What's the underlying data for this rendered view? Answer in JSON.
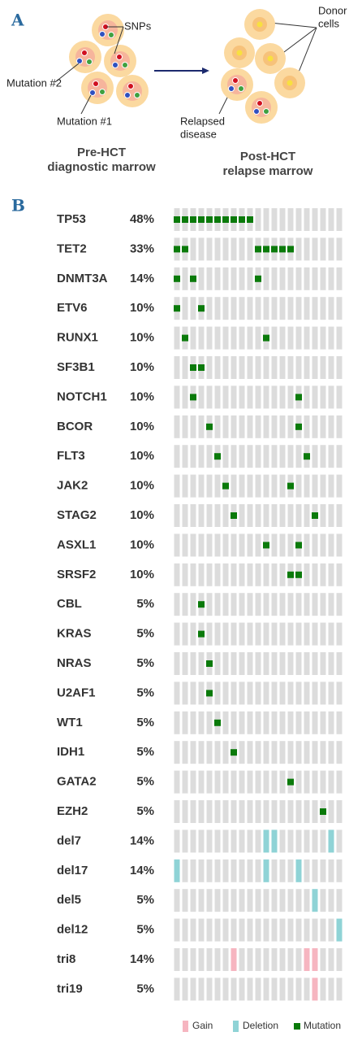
{
  "panel_a": {
    "label": "A",
    "snps": "SNPs",
    "mutation2": "Mutation #2",
    "mutation1": "Mutation #1",
    "pre_title": [
      "Pre-HCT",
      "diagnostic marrow"
    ],
    "donor": [
      "Donor",
      "cells"
    ],
    "relapsed": [
      "Relapsed",
      "disease"
    ],
    "post_title": [
      "Post-HCT",
      "relapse marrow"
    ]
  },
  "chart_data": {
    "type": "oncoprint",
    "label": "B",
    "legend": [
      {
        "name": "Gain",
        "color": "#f6b5c0"
      },
      {
        "name": "Deletion",
        "color": "#8fd3d6"
      },
      {
        "name": "Mutation",
        "color": "#0a7a0a"
      }
    ],
    "rows": [
      {
        "gene": "TP53",
        "frequency": 48,
        "frequency_label": "48%",
        "cells": [
          2,
          2,
          2,
          2,
          2,
          2,
          2,
          2,
          2,
          2,
          null,
          null,
          null,
          null,
          null,
          null,
          null,
          null,
          null,
          null,
          null
        ]
      },
      {
        "gene": "TET2",
        "frequency": 33,
        "frequency_label": "33%",
        "cells": [
          2,
          2,
          null,
          null,
          null,
          null,
          null,
          null,
          null,
          null,
          2,
          2,
          2,
          2,
          2,
          null,
          null,
          null,
          null,
          null,
          null
        ]
      },
      {
        "gene": "DNMT3A",
        "frequency": 14,
        "frequency_label": "14%",
        "cells": [
          2,
          null,
          2,
          null,
          null,
          null,
          null,
          null,
          null,
          null,
          2,
          null,
          null,
          null,
          null,
          null,
          null,
          null,
          null,
          null,
          null
        ]
      },
      {
        "gene": "ETV6",
        "frequency": 10,
        "frequency_label": "10%",
        "cells": [
          2,
          null,
          null,
          2,
          null,
          null,
          null,
          null,
          null,
          null,
          null,
          null,
          null,
          null,
          null,
          null,
          null,
          null,
          null,
          null,
          null
        ]
      },
      {
        "gene": "RUNX1",
        "frequency": 10,
        "frequency_label": "10%",
        "cells": [
          null,
          2,
          null,
          null,
          null,
          null,
          null,
          null,
          null,
          null,
          null,
          2,
          null,
          null,
          null,
          null,
          null,
          null,
          null,
          null,
          null
        ]
      },
      {
        "gene": "SF3B1",
        "frequency": 10,
        "frequency_label": "10%",
        "cells": [
          null,
          null,
          2,
          2,
          null,
          null,
          null,
          null,
          null,
          null,
          null,
          null,
          null,
          null,
          null,
          null,
          null,
          null,
          null,
          null,
          null
        ]
      },
      {
        "gene": "NOTCH1",
        "frequency": 10,
        "frequency_label": "10%",
        "cells": [
          null,
          null,
          2,
          null,
          null,
          null,
          null,
          null,
          null,
          null,
          null,
          null,
          null,
          null,
          null,
          2,
          null,
          null,
          null,
          null,
          null
        ]
      },
      {
        "gene": "BCOR",
        "frequency": 10,
        "frequency_label": "10%",
        "cells": [
          null,
          null,
          null,
          null,
          2,
          null,
          null,
          null,
          null,
          null,
          null,
          null,
          null,
          null,
          null,
          2,
          null,
          null,
          null,
          null,
          null
        ]
      },
      {
        "gene": "FLT3",
        "frequency": 10,
        "frequency_label": "10%",
        "cells": [
          null,
          null,
          null,
          null,
          null,
          2,
          null,
          null,
          null,
          null,
          null,
          null,
          null,
          null,
          null,
          null,
          2,
          null,
          null,
          null,
          null
        ]
      },
      {
        "gene": "JAK2",
        "frequency": 10,
        "frequency_label": "10%",
        "cells": [
          null,
          null,
          null,
          null,
          null,
          null,
          2,
          null,
          null,
          null,
          null,
          null,
          null,
          null,
          2,
          null,
          null,
          null,
          null,
          null,
          null
        ]
      },
      {
        "gene": "STAG2",
        "frequency": 10,
        "frequency_label": "10%",
        "cells": [
          null,
          null,
          null,
          null,
          null,
          null,
          null,
          2,
          null,
          null,
          null,
          null,
          null,
          null,
          null,
          null,
          null,
          2,
          null,
          null,
          null
        ]
      },
      {
        "gene": "ASXL1",
        "frequency": 10,
        "frequency_label": "10%",
        "cells": [
          null,
          null,
          null,
          null,
          null,
          null,
          null,
          null,
          null,
          null,
          null,
          2,
          null,
          null,
          null,
          2,
          null,
          null,
          null,
          null,
          null
        ]
      },
      {
        "gene": "SRSF2",
        "frequency": 10,
        "frequency_label": "10%",
        "cells": [
          null,
          null,
          null,
          null,
          null,
          null,
          null,
          null,
          null,
          null,
          null,
          null,
          null,
          null,
          2,
          2,
          null,
          null,
          null,
          null,
          null
        ]
      },
      {
        "gene": "CBL",
        "frequency": 5,
        "frequency_label": "5%",
        "cells": [
          null,
          null,
          null,
          2,
          null,
          null,
          null,
          null,
          null,
          null,
          null,
          null,
          null,
          null,
          null,
          null,
          null,
          null,
          null,
          null,
          null
        ]
      },
      {
        "gene": "KRAS",
        "frequency": 5,
        "frequency_label": "5%",
        "cells": [
          null,
          null,
          null,
          2,
          null,
          null,
          null,
          null,
          null,
          null,
          null,
          null,
          null,
          null,
          null,
          null,
          null,
          null,
          null,
          null,
          null
        ]
      },
      {
        "gene": "NRAS",
        "frequency": 5,
        "frequency_label": "5%",
        "cells": [
          null,
          null,
          null,
          null,
          2,
          null,
          null,
          null,
          null,
          null,
          null,
          null,
          null,
          null,
          null,
          null,
          null,
          null,
          null,
          null,
          null
        ]
      },
      {
        "gene": "U2AF1",
        "frequency": 5,
        "frequency_label": "5%",
        "cells": [
          null,
          null,
          null,
          null,
          2,
          null,
          null,
          null,
          null,
          null,
          null,
          null,
          null,
          null,
          null,
          null,
          null,
          null,
          null,
          null,
          null
        ]
      },
      {
        "gene": "WT1",
        "frequency": 5,
        "frequency_label": "5%",
        "cells": [
          null,
          null,
          null,
          null,
          null,
          2,
          null,
          null,
          null,
          null,
          null,
          null,
          null,
          null,
          null,
          null,
          null,
          null,
          null,
          null,
          null
        ]
      },
      {
        "gene": "IDH1",
        "frequency": 5,
        "frequency_label": "5%",
        "cells": [
          null,
          null,
          null,
          null,
          null,
          null,
          null,
          2,
          null,
          null,
          null,
          null,
          null,
          null,
          null,
          null,
          null,
          null,
          null,
          null,
          null
        ]
      },
      {
        "gene": "GATA2",
        "frequency": 5,
        "frequency_label": "5%",
        "cells": [
          null,
          null,
          null,
          null,
          null,
          null,
          null,
          null,
          null,
          null,
          null,
          null,
          null,
          null,
          2,
          null,
          null,
          null,
          null,
          null,
          null
        ]
      },
      {
        "gene": "EZH2",
        "frequency": 5,
        "frequency_label": "5%",
        "cells": [
          null,
          null,
          null,
          null,
          null,
          null,
          null,
          null,
          null,
          null,
          null,
          null,
          null,
          null,
          null,
          null,
          null,
          null,
          2,
          null,
          null
        ]
      },
      {
        "gene": "del7",
        "frequency": 14,
        "frequency_label": "14%",
        "cells": [
          null,
          null,
          null,
          null,
          null,
          null,
          null,
          null,
          null,
          null,
          null,
          1,
          1,
          null,
          null,
          null,
          null,
          null,
          null,
          1,
          null
        ]
      },
      {
        "gene": "del17",
        "frequency": 14,
        "frequency_label": "14%",
        "cells": [
          1,
          null,
          null,
          null,
          null,
          null,
          null,
          null,
          null,
          null,
          null,
          1,
          null,
          null,
          null,
          1,
          null,
          null,
          null,
          null,
          null
        ]
      },
      {
        "gene": "del5",
        "frequency": 5,
        "frequency_label": "5%",
        "cells": [
          null,
          null,
          null,
          null,
          null,
          null,
          null,
          null,
          null,
          null,
          null,
          null,
          null,
          null,
          null,
          null,
          null,
          1,
          null,
          null,
          null
        ]
      },
      {
        "gene": "del12",
        "frequency": 5,
        "frequency_label": "5%",
        "cells": [
          null,
          null,
          null,
          null,
          null,
          null,
          null,
          null,
          null,
          null,
          null,
          null,
          null,
          null,
          null,
          null,
          null,
          null,
          null,
          null,
          1
        ]
      },
      {
        "gene": "tri8",
        "frequency": 14,
        "frequency_label": "14%",
        "cells": [
          null,
          null,
          null,
          null,
          null,
          null,
          null,
          0,
          null,
          null,
          null,
          null,
          null,
          null,
          null,
          null,
          0,
          0,
          null,
          null,
          null
        ]
      },
      {
        "gene": "tri19",
        "frequency": 5,
        "frequency_label": "5%",
        "cells": [
          null,
          null,
          null,
          null,
          null,
          null,
          null,
          null,
          null,
          null,
          null,
          null,
          null,
          null,
          null,
          null,
          null,
          0,
          null,
          null,
          null
        ]
      }
    ]
  }
}
